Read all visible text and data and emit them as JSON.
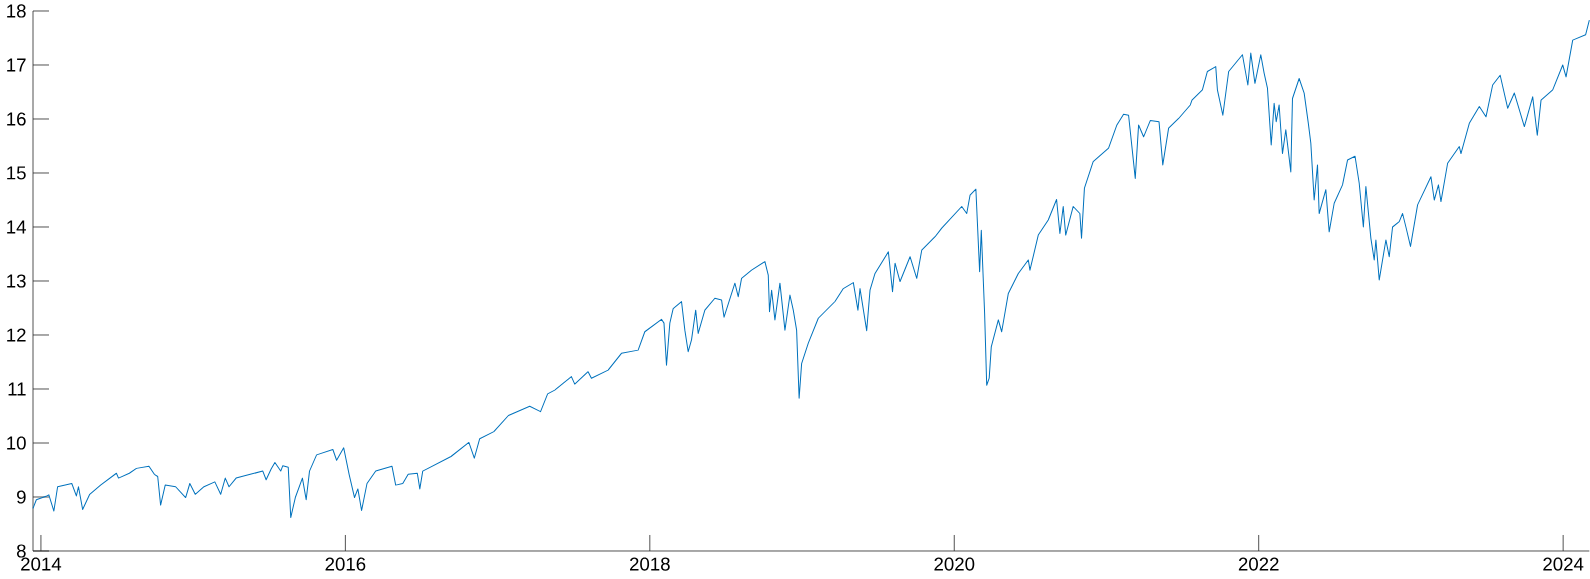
{
  "chart_data": {
    "type": "line",
    "color": "#0072bd",
    "xlim": [
      "2013-12-13",
      "2024-03-04"
    ],
    "ylim": [
      8,
      18
    ],
    "xticks": [
      "2014",
      "2016",
      "2018",
      "2020",
      "2022",
      "2024"
    ],
    "yticks": [
      8,
      9,
      10,
      11,
      12,
      13,
      14,
      15,
      16,
      17,
      18
    ],
    "x": [
      "2013-12-13",
      "2013-12-21",
      "2014-01-15",
      "2014-01-20",
      "2014-02-01",
      "2014-02-10",
      "2014-03-16",
      "2014-03-27",
      "2014-04-01",
      "2014-04-11",
      "2014-04-28",
      "2014-05-24",
      "2014-07-01",
      "2014-07-06",
      "2014-08-01",
      "2014-08-18",
      "2014-09-17",
      "2014-09-30",
      "2014-10-08",
      "2014-10-15",
      "2014-10-26",
      "2014-11-20",
      "2014-12-14",
      "2014-12-24",
      "2015-01-06",
      "2015-01-27",
      "2015-02-22",
      "2015-03-08",
      "2015-03-19",
      "2015-03-28",
      "2015-04-14",
      "2015-05-18",
      "2015-06-17",
      "2015-06-25",
      "2015-07-07",
      "2015-07-16",
      "2015-07-30",
      "2015-08-04",
      "2015-08-17",
      "2015-08-23",
      "2015-09-03",
      "2015-09-20",
      "2015-09-29",
      "2015-10-07",
      "2015-10-24",
      "2015-12-02",
      "2015-12-11",
      "2015-12-28",
      "2016-01-10",
      "2016-01-23",
      "2016-01-31",
      "2016-02-09",
      "2016-02-22",
      "2016-03-14",
      "2016-04-22",
      "2016-05-01",
      "2016-05-18",
      "2016-05-31",
      "2016-06-22",
      "2016-06-28",
      "2016-07-05",
      "2016-09-11",
      "2016-10-24",
      "2016-11-06",
      "2016-11-19",
      "2016-12-23",
      "2017-01-27",
      "2017-03-19",
      "2017-04-14",
      "2017-05-01",
      "2017-05-18",
      "2017-06-27",
      "2017-07-05",
      "2017-08-06",
      "2017-08-14",
      "2017-09-23",
      "2017-10-25",
      "2017-12-04",
      "2017-12-20",
      "2018-01-29",
      "2018-02-04",
      "2018-02-10",
      "2018-02-18",
      "2018-02-26",
      "2018-03-18",
      "2018-03-26",
      "2018-04-03",
      "2018-04-11",
      "2018-04-21",
      "2018-04-27",
      "2018-05-13",
      "2018-06-06",
      "2018-06-22",
      "2018-06-28",
      "2018-07-24",
      "2018-08-01",
      "2018-08-09",
      "2018-09-02",
      "2018-10-04",
      "2018-10-12",
      "2018-10-15",
      "2018-10-20",
      "2018-10-28",
      "2018-11-09",
      "2018-11-21",
      "2018-12-03",
      "2018-12-11",
      "2018-12-19",
      "2018-12-25",
      "2018-12-31",
      "2019-01-16",
      "2019-02-09",
      "2019-03-21",
      "2019-04-10",
      "2019-05-04",
      "2019-05-15",
      "2019-05-20",
      "2019-06-05",
      "2019-06-13",
      "2019-06-25",
      "2019-07-27",
      "2019-08-06",
      "2019-08-12",
      "2019-08-24",
      "2019-09-17",
      "2019-10-03",
      "2019-10-15",
      "2019-11-16",
      "2019-12-02",
      "2020-01-19",
      "2020-01-31",
      "2020-02-08",
      "2020-02-22",
      "2020-03-02",
      "2020-03-06",
      "2020-03-14",
      "2020-03-19",
      "2020-03-25",
      "2020-03-30",
      "2020-04-16",
      "2020-04-24",
      "2020-05-10",
      "2020-06-03",
      "2020-06-27",
      "2020-07-01",
      "2020-07-21",
      "2020-08-14",
      "2020-09-03",
      "2020-09-11",
      "2020-09-19",
      "2020-09-25",
      "2020-10-13",
      "2020-10-29",
      "2020-11-02",
      "2020-11-09",
      "2020-11-30",
      "2021-01-06",
      "2021-01-26",
      "2021-02-11",
      "2021-02-23",
      "2021-03-11",
      "2021-03-19",
      "2021-03-31",
      "2021-04-16",
      "2021-05-07",
      "2021-05-16",
      "2021-05-30",
      "2021-06-23",
      "2021-07-21",
      "2021-07-25",
      "2021-08-19",
      "2021-08-31",
      "2021-09-20",
      "2021-09-24",
      "2021-10-07",
      "2021-10-21",
      "2021-11-23",
      "2021-12-06",
      "2021-12-13",
      "2021-12-23",
      "2022-01-06",
      "2022-01-14",
      "2022-01-22",
      "2022-01-31",
      "2022-02-07",
      "2022-02-12",
      "2022-02-19",
      "2022-02-27",
      "2022-03-07",
      "2022-03-19",
      "2022-03-23",
      "2022-04-08",
      "2022-04-20",
      "2022-04-30",
      "2022-05-06",
      "2022-05-14",
      "2022-05-22",
      "2022-05-26",
      "2022-06-11",
      "2022-06-19",
      "2022-07-01",
      "2022-07-21",
      "2022-08-02",
      "2022-08-20",
      "2022-08-30",
      "2022-09-09",
      "2022-09-15",
      "2022-09-27",
      "2022-10-05",
      "2022-10-09",
      "2022-10-17",
      "2022-11-02",
      "2022-11-10",
      "2022-11-18",
      "2022-12-04",
      "2022-12-12",
      "2022-12-20",
      "2022-12-31",
      "2023-01-17",
      "2023-02-18",
      "2023-02-26",
      "2023-03-08",
      "2023-03-14",
      "2023-03-30",
      "2023-04-27",
      "2023-05-01",
      "2023-05-21",
      "2023-06-14",
      "2023-06-30",
      "2023-07-16",
      "2023-08-03",
      "2023-08-21",
      "2023-09-06",
      "2023-09-30",
      "2023-10-20",
      "2023-10-31",
      "2023-11-09",
      "2023-12-07",
      "2023-12-31",
      "2024-01-08",
      "2024-01-24",
      "2024-02-24",
      "2024-03-04"
    ],
    "values": [
      8.79,
      8.95,
      9.02,
      9.04,
      8.74,
      9.19,
      9.25,
      9.02,
      9.19,
      8.77,
      9.05,
      9.22,
      9.44,
      9.35,
      9.44,
      9.53,
      9.57,
      9.42,
      9.38,
      8.85,
      9.22,
      9.19,
      8.99,
      9.25,
      9.05,
      9.19,
      9.28,
      9.05,
      9.35,
      9.19,
      9.35,
      9.42,
      9.48,
      9.32,
      9.52,
      9.64,
      9.48,
      9.58,
      9.55,
      8.62,
      8.99,
      9.35,
      8.95,
      9.48,
      9.78,
      9.88,
      9.68,
      9.91,
      9.42,
      8.99,
      9.15,
      8.75,
      9.25,
      9.48,
      9.57,
      9.22,
      9.25,
      9.42,
      9.44,
      9.15,
      9.48,
      9.75,
      10.01,
      9.72,
      10.08,
      10.21,
      10.51,
      10.68,
      10.58,
      10.91,
      10.98,
      11.23,
      11.09,
      11.32,
      11.2,
      11.35,
      11.66,
      11.72,
      12.06,
      12.29,
      12.22,
      11.44,
      12.22,
      12.49,
      12.62,
      12.09,
      11.69,
      11.91,
      12.46,
      12.03,
      12.46,
      12.68,
      12.65,
      12.33,
      12.96,
      12.71,
      13.05,
      13.2,
      13.36,
      13.11,
      12.43,
      12.83,
      12.28,
      12.96,
      12.09,
      12.74,
      12.46,
      12.09,
      10.83,
      11.47,
      11.85,
      12.31,
      12.62,
      12.86,
      12.97,
      12.46,
      12.86,
      12.08,
      12.83,
      13.14,
      13.54,
      12.8,
      13.33,
      12.99,
      13.45,
      13.05,
      13.57,
      13.82,
      13.98,
      14.38,
      14.25,
      14.59,
      14.7,
      13.17,
      13.94,
      12.4,
      11.07,
      11.2,
      11.78,
      12.28,
      12.06,
      12.77,
      13.14,
      13.39,
      13.2,
      13.85,
      14.13,
      14.51,
      13.88,
      14.38,
      13.85,
      14.38,
      14.25,
      13.79,
      14.72,
      15.21,
      15.46,
      15.89,
      16.09,
      16.07,
      14.9,
      15.89,
      15.67,
      15.97,
      15.95,
      15.15,
      15.83,
      16.01,
      16.26,
      16.35,
      16.54,
      16.88,
      16.97,
      16.54,
      16.07,
      16.88,
      17.19,
      16.63,
      17.22,
      16.66,
      17.19,
      16.85,
      16.57,
      15.52,
      16.29,
      15.95,
      16.26,
      15.36,
      15.8,
      15.02,
      16.38,
      16.75,
      16.48,
      15.92,
      15.55,
      14.5,
      15.15,
      14.25,
      14.69,
      13.91,
      14.44,
      14.78,
      15.24,
      15.31,
      14.81,
      14.0,
      14.75,
      13.79,
      13.39,
      13.76,
      13.02,
      13.76,
      13.45,
      14.0,
      14.1,
      14.25,
      14.0,
      13.64,
      14.41,
      14.93,
      14.5,
      14.78,
      14.47,
      15.18,
      15.49,
      15.36,
      15.92,
      16.23,
      16.04,
      16.63,
      16.81,
      16.2,
      16.48,
      15.86,
      16.41,
      15.7,
      16.35,
      16.54,
      17.0,
      16.78,
      17.46,
      17.56,
      17.83
    ]
  }
}
